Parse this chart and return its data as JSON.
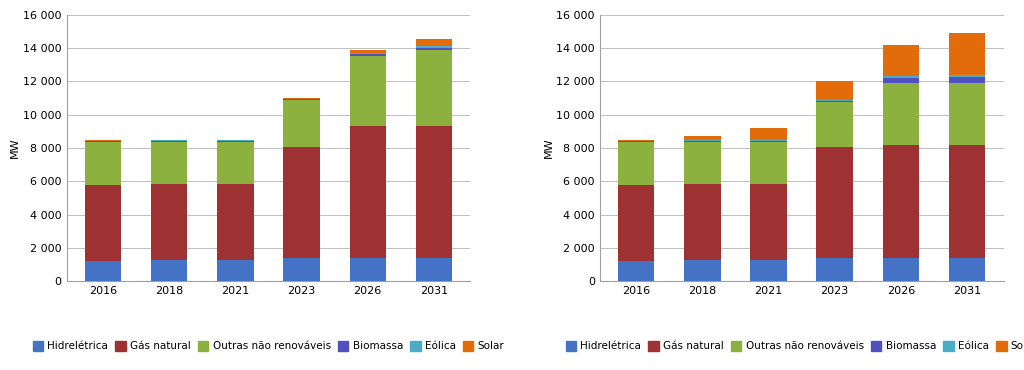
{
  "left_chart": {
    "ylabel": "MW",
    "years": [
      2016,
      2018,
      2021,
      2023,
      2026,
      2031
    ],
    "series": {
      "Hidrelétrica": [
        1200,
        1270,
        1270,
        1400,
        1400,
        1400
      ],
      "Gás natural": [
        4600,
        4560,
        4560,
        6650,
        7900,
        7900
      ],
      "Outras não renováveis": [
        2550,
        2550,
        2550,
        2820,
        4250,
        4600
      ],
      "Biomassa": [
        50,
        50,
        50,
        50,
        75,
        100
      ],
      "Eólica": [
        30,
        30,
        30,
        30,
        75,
        150
      ],
      "Solar": [
        29,
        40,
        40,
        50,
        200,
        378
      ]
    },
    "ylim": [
      0,
      16000
    ],
    "yticks": [
      0,
      2000,
      4000,
      6000,
      8000,
      10000,
      12000,
      14000,
      16000
    ]
  },
  "right_chart": {
    "ylabel": "MW",
    "years": [
      2016,
      2018,
      2021,
      2023,
      2026,
      2031
    ],
    "series": {
      "Hidrelétrica": [
        1200,
        1270,
        1270,
        1400,
        1400,
        1400
      ],
      "Gás natural": [
        4600,
        4560,
        4560,
        6650,
        6800,
        6800
      ],
      "Outras não renováveis": [
        2550,
        2550,
        2550,
        2730,
        3700,
        3700
      ],
      "Biomassa": [
        50,
        50,
        50,
        50,
        280,
        350
      ],
      "Eólica": [
        30,
        30,
        30,
        30,
        120,
        150
      ],
      "Solar": [
        29,
        240,
        740,
        1140,
        1900,
        2500
      ]
    },
    "ylim": [
      0,
      16000
    ],
    "yticks": [
      0,
      2000,
      4000,
      6000,
      8000,
      10000,
      12000,
      14000,
      16000
    ]
  },
  "colors": {
    "Hidrelétrica": "#4472C4",
    "Gás natural": "#9E3132",
    "Outras não renováveis": "#8DB13F",
    "Biomassa": "#5050C0",
    "Eólica": "#4BACC6",
    "Solar": "#E26B0A"
  },
  "legend_labels": [
    "Hidrelétrica",
    "Gás natural",
    "Outras não renováveis",
    "Biomassa",
    "Eólica",
    "Solar"
  ],
  "bar_width": 0.55,
  "background_color": "#FFFFFF",
  "grid_color": "#C0C0C0",
  "font_size": 8,
  "legend_font_size": 7.5
}
